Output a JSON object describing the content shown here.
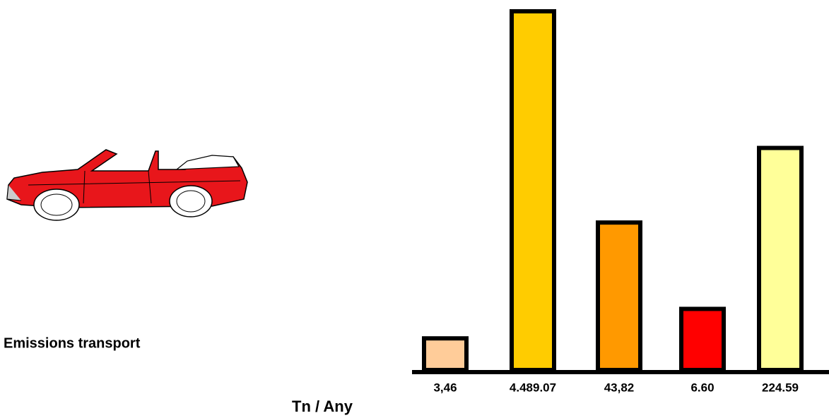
{
  "chart_data": {
    "type": "bar",
    "title": "Emissions transport",
    "unit_label": "Tn / Any",
    "categories": [
      null,
      null,
      null,
      null,
      null
    ],
    "values": [
      3.46,
      4489.07,
      43.82,
      6.6,
      224.59
    ],
    "value_labels": [
      "3,46",
      "4.489.07",
      "43,82",
      "6.60",
      "224.59"
    ],
    "colors": [
      "#ffcc99",
      "#ffcc00",
      "#ff9900",
      "#ff0000",
      "#ffff99"
    ],
    "log": true
  }
}
